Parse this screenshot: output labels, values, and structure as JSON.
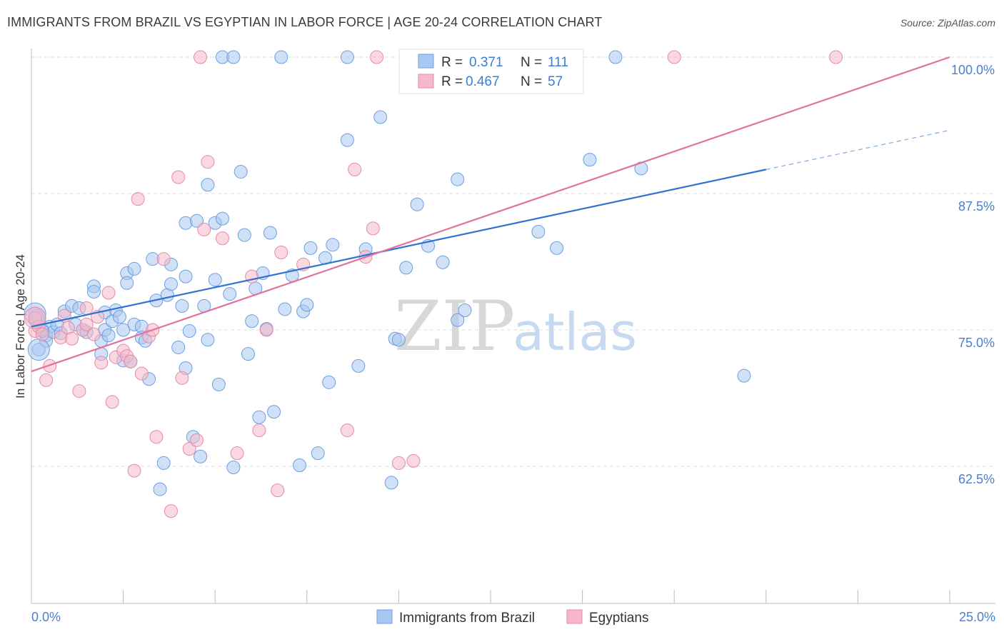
{
  "header": {
    "title": "IMMIGRANTS FROM BRAZIL VS EGYPTIAN IN LABOR FORCE | AGE 20-24 CORRELATION CHART",
    "source": "Source: ZipAtlas.com"
  },
  "watermark": {
    "zip": "ZIP",
    "atlas": "atlas"
  },
  "legend": {
    "rows": [
      {
        "r_label": "R =",
        "r_value": "0.371",
        "n_label": "N =",
        "n_value": "111",
        "color": "#a9c8f0"
      },
      {
        "r_label": "R =",
        "r_value": "0.467",
        "n_label": "N =",
        "n_value": "57",
        "color": "#f6b8cb"
      }
    ]
  },
  "chart_data": {
    "type": "scatter",
    "title": "IMMIGRANTS FROM BRAZIL VS EGYPTIAN IN LABOR FORCE | AGE 20-24 CORRELATION CHART",
    "xlabel": "",
    "ylabel": "In Labor Force | Age 20-24",
    "xlim": [
      0,
      25
    ],
    "ylim": [
      51,
      100.5
    ],
    "x_tick_labels": [
      "0.0%",
      "25.0%"
    ],
    "y_tick_labels": [
      "62.5%",
      "75.0%",
      "87.5%",
      "100.0%"
    ],
    "y_ticks": [
      62.5,
      75.0,
      87.5,
      100.0
    ],
    "grid": true,
    "legend_position": "top-center",
    "bottom_legend": [
      "Immigrants from Brazil",
      "Egyptians"
    ],
    "series": [
      {
        "name": "Immigrants from Brazil",
        "color": "#a9c8f0",
        "stroke": "#6a9fe0",
        "line_color": "#2f72d0",
        "trend": {
          "x0": 0.0,
          "y0": 75.3,
          "x1": 20.0,
          "y1": 89.7,
          "dash_to_x": 25.0,
          "dash_to_y": 93.3
        },
        "points": [
          [
            0.1,
            76.5
          ],
          [
            0.2,
            76.0
          ],
          [
            0.2,
            73.2
          ],
          [
            0.3,
            75.0
          ],
          [
            0.4,
            74.5
          ],
          [
            0.4,
            74.0
          ],
          [
            0.5,
            75.3
          ],
          [
            0.6,
            74.8
          ],
          [
            0.7,
            75.5
          ],
          [
            0.8,
            74.7
          ],
          [
            0.9,
            76.7
          ],
          [
            1.1,
            77.2
          ],
          [
            1.2,
            75.5
          ],
          [
            1.3,
            77.0
          ],
          [
            1.4,
            75.0
          ],
          [
            1.5,
            74.8
          ],
          [
            1.7,
            79.0
          ],
          [
            1.7,
            78.5
          ],
          [
            1.9,
            72.8
          ],
          [
            1.9,
            74.0
          ],
          [
            2.0,
            75.0
          ],
          [
            2.0,
            76.6
          ],
          [
            2.1,
            74.5
          ],
          [
            2.2,
            75.8
          ],
          [
            2.3,
            76.8
          ],
          [
            2.4,
            76.2
          ],
          [
            2.5,
            75.0
          ],
          [
            2.5,
            72.2
          ],
          [
            2.6,
            80.2
          ],
          [
            2.6,
            79.3
          ],
          [
            2.8,
            80.6
          ],
          [
            2.8,
            75.5
          ],
          [
            3.0,
            75.3
          ],
          [
            3.0,
            74.3
          ],
          [
            3.1,
            74.0
          ],
          [
            3.2,
            70.5
          ],
          [
            3.3,
            81.5
          ],
          [
            3.4,
            77.7
          ],
          [
            3.5,
            60.4
          ],
          [
            3.6,
            62.8
          ],
          [
            3.7,
            78.2
          ],
          [
            3.8,
            79.2
          ],
          [
            3.8,
            81.0
          ],
          [
            4.0,
            73.4
          ],
          [
            4.1,
            77.2
          ],
          [
            4.2,
            79.9
          ],
          [
            4.2,
            71.5
          ],
          [
            4.2,
            84.8
          ],
          [
            4.3,
            74.9
          ],
          [
            4.4,
            65.2
          ],
          [
            4.5,
            85.0
          ],
          [
            4.6,
            63.4
          ],
          [
            4.7,
            77.2
          ],
          [
            4.8,
            88.3
          ],
          [
            4.8,
            74.1
          ],
          [
            5.0,
            79.6
          ],
          [
            5.0,
            84.8
          ],
          [
            5.1,
            70.0
          ],
          [
            5.2,
            85.2
          ],
          [
            5.2,
            100.0
          ],
          [
            5.4,
            78.3
          ],
          [
            5.5,
            62.4
          ],
          [
            5.5,
            100.0
          ],
          [
            5.7,
            89.5
          ],
          [
            5.8,
            83.7
          ],
          [
            5.9,
            72.8
          ],
          [
            6.0,
            75.8
          ],
          [
            6.1,
            78.8
          ],
          [
            6.2,
            67.0
          ],
          [
            6.3,
            80.2
          ],
          [
            6.4,
            75.1
          ],
          [
            6.5,
            83.9
          ],
          [
            6.6,
            67.5
          ],
          [
            6.8,
            100.0
          ],
          [
            6.9,
            76.9
          ],
          [
            7.1,
            80.0
          ],
          [
            7.3,
            62.6
          ],
          [
            7.4,
            76.7
          ],
          [
            7.5,
            77.3
          ],
          [
            7.6,
            82.5
          ],
          [
            7.8,
            63.7
          ],
          [
            8.0,
            81.6
          ],
          [
            8.1,
            70.2
          ],
          [
            8.2,
            82.8
          ],
          [
            8.6,
            92.4
          ],
          [
            8.6,
            100.0
          ],
          [
            8.9,
            71.7
          ],
          [
            9.1,
            82.4
          ],
          [
            9.5,
            94.5
          ],
          [
            9.8,
            61.0
          ],
          [
            9.9,
            74.2
          ],
          [
            10.0,
            74.1
          ],
          [
            10.2,
            80.7
          ],
          [
            10.5,
            86.5
          ],
          [
            10.8,
            82.7
          ],
          [
            11.2,
            81.2
          ],
          [
            11.6,
            88.8
          ],
          [
            11.6,
            75.9
          ],
          [
            11.8,
            76.8
          ],
          [
            12.0,
            100.0
          ],
          [
            13.3,
            100.0
          ],
          [
            13.8,
            84.0
          ],
          [
            14.3,
            82.5
          ],
          [
            15.2,
            90.6
          ],
          [
            15.9,
            100.0
          ],
          [
            16.6,
            89.8
          ],
          [
            19.4,
            70.8
          ],
          [
            0.1,
            75.9
          ],
          [
            0.15,
            76.3
          ],
          [
            0.3,
            74.9
          ],
          [
            2.7,
            72.1
          ]
        ],
        "big": [
          [
            0.1,
            76.5
          ],
          [
            0.2,
            73.2
          ]
        ]
      },
      {
        "name": "Egyptians",
        "color": "#f6b8cb",
        "stroke": "#e58aa6",
        "line_color": "#e0739a",
        "trend": {
          "x0": 0.0,
          "y0": 71.2,
          "x1": 25.0,
          "y1": 100.0
        },
        "points": [
          [
            0.1,
            76.1
          ],
          [
            0.1,
            74.9
          ],
          [
            0.2,
            75.3
          ],
          [
            0.3,
            74.6
          ],
          [
            0.4,
            70.4
          ],
          [
            0.5,
            71.7
          ],
          [
            0.8,
            74.3
          ],
          [
            0.9,
            76.3
          ],
          [
            1.0,
            75.2
          ],
          [
            1.1,
            74.2
          ],
          [
            1.3,
            69.4
          ],
          [
            1.4,
            75.0
          ],
          [
            1.5,
            75.5
          ],
          [
            1.5,
            77.0
          ],
          [
            1.7,
            74.6
          ],
          [
            1.8,
            76.2
          ],
          [
            1.9,
            72.0
          ],
          [
            2.1,
            78.4
          ],
          [
            2.2,
            68.4
          ],
          [
            2.3,
            72.5
          ],
          [
            2.5,
            73.1
          ],
          [
            2.6,
            72.6
          ],
          [
            2.7,
            72.1
          ],
          [
            2.8,
            62.1
          ],
          [
            2.9,
            87.0
          ],
          [
            3.0,
            71.0
          ],
          [
            3.2,
            74.4
          ],
          [
            3.3,
            75.0
          ],
          [
            3.4,
            65.2
          ],
          [
            3.6,
            81.5
          ],
          [
            3.8,
            58.4
          ],
          [
            4.0,
            89.0
          ],
          [
            4.1,
            70.6
          ],
          [
            4.3,
            64.1
          ],
          [
            4.5,
            64.9
          ],
          [
            4.6,
            100.0
          ],
          [
            4.7,
            84.2
          ],
          [
            4.8,
            90.4
          ],
          [
            5.2,
            83.4
          ],
          [
            5.6,
            63.7
          ],
          [
            6.0,
            79.9
          ],
          [
            6.2,
            65.8
          ],
          [
            6.4,
            75.0
          ],
          [
            6.7,
            60.3
          ],
          [
            6.8,
            82.1
          ],
          [
            7.4,
            81.0
          ],
          [
            8.6,
            65.8
          ],
          [
            8.8,
            89.7
          ],
          [
            9.1,
            81.7
          ],
          [
            9.3,
            84.3
          ],
          [
            9.4,
            100.0
          ],
          [
            10.0,
            62.8
          ],
          [
            10.4,
            63.0
          ],
          [
            10.9,
            100.0
          ],
          [
            13.0,
            100.0
          ],
          [
            17.5,
            100.0
          ],
          [
            21.9,
            100.0
          ]
        ],
        "big": [
          [
            0.1,
            76.1
          ]
        ]
      }
    ]
  }
}
